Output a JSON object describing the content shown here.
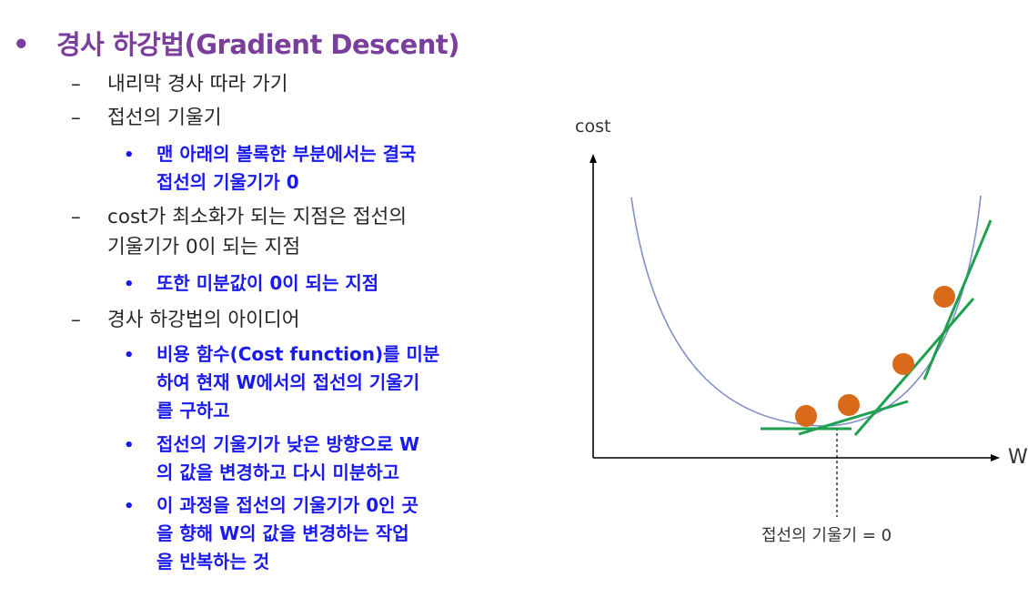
{
  "title": {
    "bullet": "•",
    "text": "경사 하강법(Gradient Descent)"
  },
  "items": [
    {
      "dash": "–",
      "lines": [
        "내리막 경사 따라 가기"
      ]
    },
    {
      "dash": "–",
      "lines": [
        "접선의 기울기"
      ]
    },
    {
      "dot": "•",
      "lines": [
        "맨 아래의 볼록한 부분에서는 결국",
        "접선의 기울기가 0"
      ]
    },
    {
      "dash": "–",
      "lines": [
        "cost가 최소화가 되는 지점은 접선의",
        "기울기가 0이 되는 지점"
      ]
    },
    {
      "dot": "•",
      "lines": [
        "또한 미분값이 0이 되는 지점"
      ]
    },
    {
      "dash": "–",
      "lines": [
        "경사 하강법의 아이디어"
      ]
    },
    {
      "dot": "•",
      "lines": [
        "비용 함수(Cost function)를 미분",
        "하여 현재 W에서의 접선의 기울기",
        "를 구하고"
      ]
    },
    {
      "dot": "•",
      "lines": [
        "접선의 기울기가 낮은 방향으로 W",
        "의 값을 변경하고 다시 미분하고"
      ]
    },
    {
      "dot": "•",
      "lines": [
        "이 과정을 접선의 기울기가 0인 곳",
        "을 향해 W의 값을 변경하는 작업",
        "을 반복하는 것"
      ]
    }
  ],
  "diagram": {
    "y_label": "cost",
    "x_label": "W",
    "caption": "접선의 기울기 = 0",
    "colors": {
      "curve": "#8090c8",
      "tangent": "#1fa050",
      "point": "#d86a1a",
      "axis": "#000000"
    }
  }
}
